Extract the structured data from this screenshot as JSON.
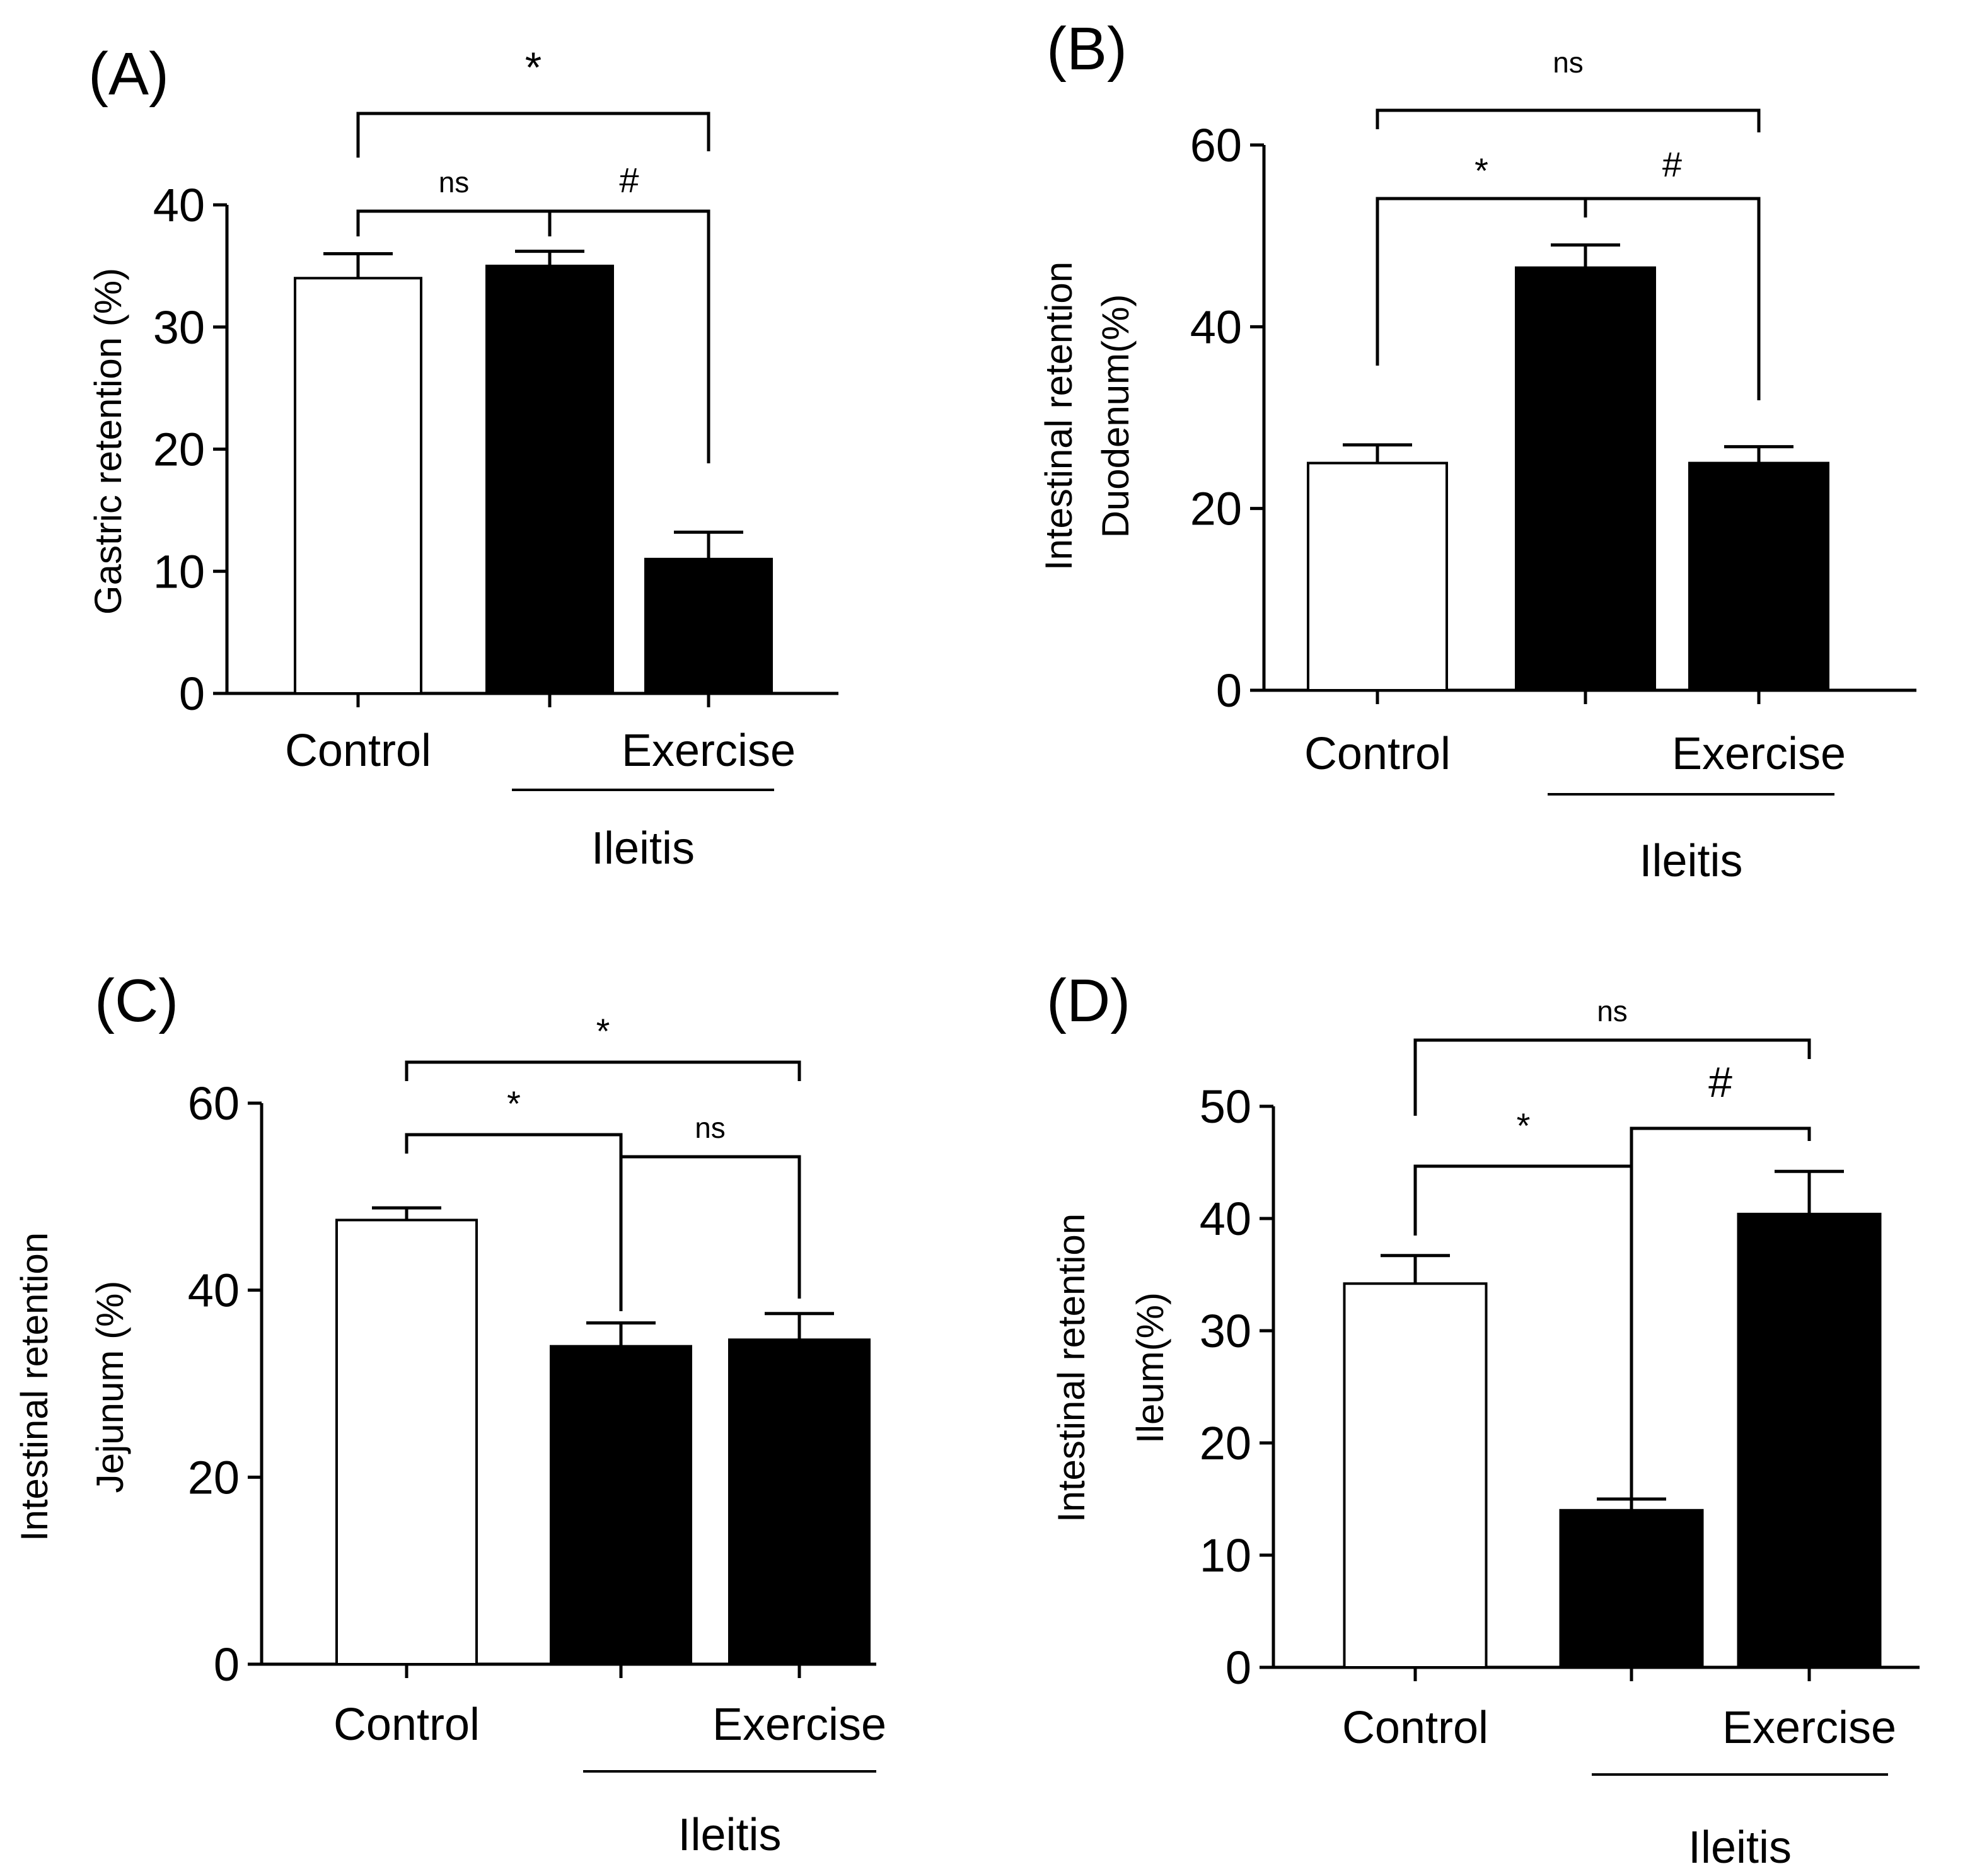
{
  "figure": {
    "panels": [
      "(A)",
      "(B)",
      "(C)",
      "(D)"
    ]
  },
  "chart_data": [
    {
      "id": "A",
      "type": "bar",
      "panel_label": "(A)",
      "ylabel_lines": [
        "Gastric retention (%)"
      ],
      "ylim": [
        0,
        40
      ],
      "yticks": [
        0,
        10,
        20,
        30,
        40
      ],
      "series": [
        {
          "name": "Control",
          "value": 34,
          "error": 2,
          "fill": "white"
        },
        {
          "name": "Ileitis",
          "value": 35,
          "error": 1.2,
          "fill": "black"
        },
        {
          "name": "Ileitis + Exercise",
          "value": 11,
          "error": 2.2,
          "fill": "black"
        }
      ],
      "category_labels": [
        {
          "text": "Control",
          "bar": 0
        },
        {
          "text": "Exercise",
          "bar": 2
        }
      ],
      "group_label": {
        "text": "Ileitis",
        "bars": [
          1,
          2
        ]
      },
      "significance": [
        {
          "from": 0,
          "to": 2,
          "label": "*"
        },
        {
          "from": 0,
          "to": 1,
          "label": "ns"
        },
        {
          "from": 1,
          "to": 2,
          "label": "#"
        }
      ]
    },
    {
      "id": "B",
      "type": "bar",
      "panel_label": "(B)",
      "ylabel_lines": [
        "Intestinal retention",
        "Duodenum(%)"
      ],
      "ylim": [
        0,
        60
      ],
      "yticks": [
        0,
        20,
        40,
        60
      ],
      "series": [
        {
          "name": "Control",
          "value": 25,
          "error": 2,
          "fill": "white"
        },
        {
          "name": "Ileitis",
          "value": 46.5,
          "error": 2.5,
          "fill": "black"
        },
        {
          "name": "Ileitis + Exercise",
          "value": 25,
          "error": 1.8,
          "fill": "black"
        }
      ],
      "category_labels": [
        {
          "text": "Control",
          "bar": 0
        },
        {
          "text": "Exercise",
          "bar": 2
        }
      ],
      "group_label": {
        "text": "Ileitis",
        "bars": [
          1,
          2
        ]
      },
      "significance": [
        {
          "from": 0,
          "to": 2,
          "label": "ns"
        },
        {
          "from": 0,
          "to": 1,
          "label": "*"
        },
        {
          "from": 1,
          "to": 2,
          "label": "#"
        }
      ]
    },
    {
      "id": "C",
      "type": "bar",
      "panel_label": "(C)",
      "ylabel_lines": [
        "Intestinal retention",
        "Jejunum (%)"
      ],
      "ylim": [
        0,
        60
      ],
      "yticks": [
        0,
        20,
        40,
        60
      ],
      "series": [
        {
          "name": "Control",
          "value": 47.5,
          "error": 1.3,
          "fill": "white"
        },
        {
          "name": "Ileitis",
          "value": 34,
          "error": 2.5,
          "fill": "black"
        },
        {
          "name": "Ileitis + Exercise",
          "value": 34.7,
          "error": 2.8,
          "fill": "black"
        }
      ],
      "category_labels": [
        {
          "text": "Control",
          "bar": 0
        },
        {
          "text": "Exercise",
          "bar": 2
        }
      ],
      "group_label": {
        "text": "Ileitis",
        "bars": [
          1,
          2
        ]
      },
      "significance": [
        {
          "from": 0,
          "to": 2,
          "label": "*"
        },
        {
          "from": 0,
          "to": 1,
          "label": "*"
        },
        {
          "from": 1,
          "to": 2,
          "label": "ns"
        }
      ]
    },
    {
      "id": "D",
      "type": "bar",
      "panel_label": "(D)",
      "ylabel_lines": [
        "Intestinal retention",
        "Ileum(%)"
      ],
      "ylim": [
        0,
        50
      ],
      "yticks": [
        0,
        10,
        20,
        30,
        40,
        50
      ],
      "series": [
        {
          "name": "Control",
          "value": 34.2,
          "error": 2.5,
          "fill": "white"
        },
        {
          "name": "Ileitis",
          "value": 14,
          "error": 1,
          "fill": "black"
        },
        {
          "name": "Ileitis + Exercise",
          "value": 40.4,
          "error": 3.8,
          "fill": "black"
        }
      ],
      "category_labels": [
        {
          "text": "Control",
          "bar": 0
        },
        {
          "text": "Exercise",
          "bar": 2
        }
      ],
      "group_label": {
        "text": "Ileitis",
        "bars": [
          1,
          2
        ]
      },
      "significance": [
        {
          "from": 0,
          "to": 2,
          "label": "ns"
        },
        {
          "from": 0,
          "to": 1,
          "label": "*"
        },
        {
          "from": 1,
          "to": 2,
          "label": "#"
        }
      ]
    }
  ]
}
